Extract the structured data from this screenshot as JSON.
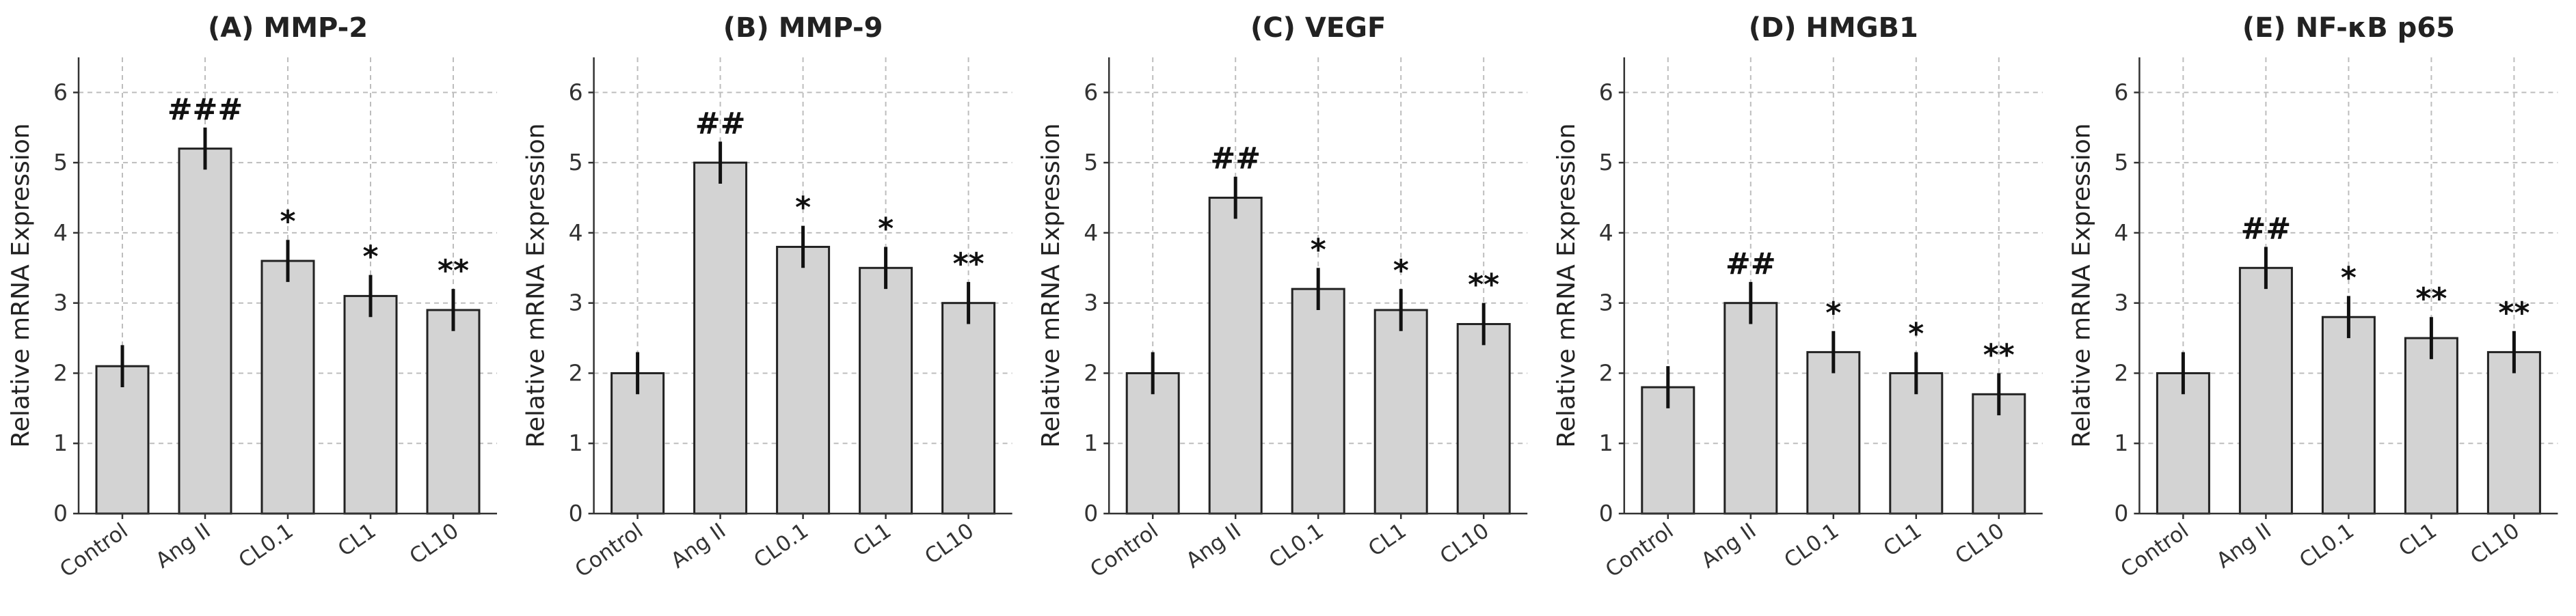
{
  "chart_data": [
    {
      "type": "bar",
      "title": "(A) MMP-2",
      "xlabel": "",
      "ylabel": "Relative mRNA Expression",
      "ylim": [
        0,
        6.5
      ],
      "yticks": [
        0,
        1,
        2,
        3,
        4,
        5,
        6
      ],
      "grid": true,
      "categories": [
        "Control",
        "Ang II",
        "CL0.1",
        "CL1",
        "CL10"
      ],
      "values": [
        2.1,
        5.2,
        3.6,
        3.1,
        2.9
      ],
      "errors": [
        0.3,
        0.3,
        0.3,
        0.3,
        0.3
      ],
      "annotations": [
        "",
        "###",
        "*",
        "*",
        "**"
      ]
    },
    {
      "type": "bar",
      "title": "(B) MMP-9",
      "xlabel": "",
      "ylabel": "Relative mRNA Expression",
      "ylim": [
        0,
        6.5
      ],
      "yticks": [
        0,
        1,
        2,
        3,
        4,
        5,
        6
      ],
      "grid": true,
      "categories": [
        "Control",
        "Ang II",
        "CL0.1",
        "CL1",
        "CL10"
      ],
      "values": [
        2.0,
        5.0,
        3.8,
        3.5,
        3.0
      ],
      "errors": [
        0.3,
        0.3,
        0.3,
        0.3,
        0.3
      ],
      "annotations": [
        "",
        "##",
        "*",
        "*",
        "**"
      ]
    },
    {
      "type": "bar",
      "title": "(C) VEGF",
      "xlabel": "",
      "ylabel": "Relative mRNA Expression",
      "ylim": [
        0,
        6.5
      ],
      "yticks": [
        0,
        1,
        2,
        3,
        4,
        5,
        6
      ],
      "grid": true,
      "categories": [
        "Control",
        "Ang II",
        "CL0.1",
        "CL1",
        "CL10"
      ],
      "values": [
        2.0,
        4.5,
        3.2,
        2.9,
        2.7
      ],
      "errors": [
        0.3,
        0.3,
        0.3,
        0.3,
        0.3
      ],
      "annotations": [
        "",
        "##",
        "*",
        "*",
        "**"
      ]
    },
    {
      "type": "bar",
      "title": "(D) HMGB1",
      "xlabel": "",
      "ylabel": "Relative mRNA Expression",
      "ylim": [
        0,
        6.5
      ],
      "yticks": [
        0,
        1,
        2,
        3,
        4,
        5,
        6
      ],
      "grid": true,
      "categories": [
        "Control",
        "Ang II",
        "CL0.1",
        "CL1",
        "CL10"
      ],
      "values": [
        1.8,
        3.0,
        2.3,
        2.0,
        1.7
      ],
      "errors": [
        0.3,
        0.3,
        0.3,
        0.3,
        0.3
      ],
      "annotations": [
        "",
        "##",
        "*",
        "*",
        "**"
      ]
    },
    {
      "type": "bar",
      "title": "(E) NF-κB p65",
      "xlabel": "",
      "ylabel": "Relative mRNA Expression",
      "ylim": [
        0,
        6.5
      ],
      "yticks": [
        0,
        1,
        2,
        3,
        4,
        5,
        6
      ],
      "grid": true,
      "categories": [
        "Control",
        "Ang II",
        "CL0.1",
        "CL1",
        "CL10"
      ],
      "values": [
        2.0,
        3.5,
        2.8,
        2.5,
        2.3
      ],
      "errors": [
        0.3,
        0.3,
        0.3,
        0.3,
        0.3
      ],
      "annotations": [
        "",
        "##",
        "*",
        "**",
        "**"
      ]
    }
  ]
}
